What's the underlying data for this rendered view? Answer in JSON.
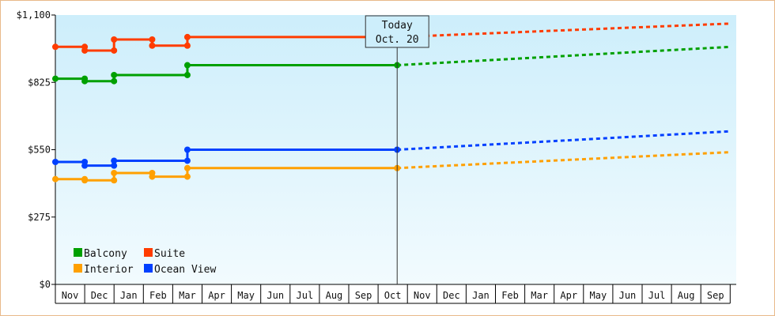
{
  "chart_data": {
    "type": "line",
    "title": "",
    "xlabel": "",
    "ylabel": "",
    "ylim": [
      0,
      1100
    ],
    "yticks": [
      0,
      275,
      550,
      825,
      1100
    ],
    "ytick_labels": [
      "$0",
      "$275",
      "$550",
      "$825",
      "$1,100"
    ],
    "months": [
      "Nov",
      "Dec",
      "Jan",
      "Feb",
      "Mar",
      "Apr",
      "May",
      "Jun",
      "Jul",
      "Aug",
      "Sep",
      "Oct",
      "Nov",
      "Dec",
      "Jan",
      "Feb",
      "Mar",
      "Apr",
      "May",
      "Jun",
      "Jul",
      "Aug",
      "Sep"
    ],
    "x_unit_note": "month index: 0 = start of first Nov, 1 = start of Dec, etc.",
    "today": {
      "line1": "Today",
      "line2": "Oct. 20",
      "x": 11.65
    },
    "grid": false,
    "legend_placement": "bottom-left",
    "series": [
      {
        "name": "Suite",
        "color": "#ff3c00",
        "history": [
          [
            0,
            970
          ],
          [
            1,
            970
          ],
          [
            1,
            955
          ],
          [
            2,
            955
          ],
          [
            2,
            1000
          ],
          [
            3.3,
            1000
          ],
          [
            3.3,
            975
          ],
          [
            4.5,
            975
          ],
          [
            4.5,
            1010
          ],
          [
            11.65,
            1010
          ]
        ],
        "markers": [
          [
            0,
            970
          ],
          [
            1,
            970
          ],
          [
            1,
            955
          ],
          [
            2,
            955
          ],
          [
            2,
            1000
          ],
          [
            3.3,
            1000
          ],
          [
            3.3,
            975
          ],
          [
            4.5,
            975
          ],
          [
            4.5,
            1010
          ],
          [
            11.65,
            1010
          ]
        ],
        "forecast": [
          [
            11.65,
            1010
          ],
          [
            23,
            1065
          ]
        ]
      },
      {
        "name": "Balcony",
        "color": "#00a000",
        "history": [
          [
            0,
            840
          ],
          [
            1,
            840
          ],
          [
            1,
            830
          ],
          [
            2,
            830
          ],
          [
            2,
            855
          ],
          [
            4.5,
            855
          ],
          [
            4.5,
            895
          ],
          [
            11.65,
            895
          ]
        ],
        "markers": [
          [
            0,
            840
          ],
          [
            1,
            840
          ],
          [
            1,
            830
          ],
          [
            2,
            830
          ],
          [
            2,
            855
          ],
          [
            4.5,
            855
          ],
          [
            4.5,
            895
          ],
          [
            11.65,
            895
          ]
        ],
        "forecast": [
          [
            11.65,
            895
          ],
          [
            23,
            970
          ]
        ]
      },
      {
        "name": "Ocean View",
        "color": "#0040ff",
        "history": [
          [
            0,
            500
          ],
          [
            1,
            500
          ],
          [
            1,
            485
          ],
          [
            2,
            485
          ],
          [
            2,
            505
          ],
          [
            4.5,
            505
          ],
          [
            4.5,
            550
          ],
          [
            11.65,
            550
          ]
        ],
        "markers": [
          [
            0,
            500
          ],
          [
            1,
            500
          ],
          [
            1,
            485
          ],
          [
            2,
            485
          ],
          [
            2,
            505
          ],
          [
            4.5,
            505
          ],
          [
            4.5,
            550
          ],
          [
            11.65,
            550
          ]
        ],
        "forecast": [
          [
            11.65,
            550
          ],
          [
            23,
            625
          ]
        ]
      },
      {
        "name": "Interior",
        "color": "#ffa000",
        "history": [
          [
            0,
            430
          ],
          [
            1,
            430
          ],
          [
            1,
            425
          ],
          [
            2,
            425
          ],
          [
            2,
            455
          ],
          [
            3.3,
            455
          ],
          [
            3.3,
            440
          ],
          [
            4.5,
            440
          ],
          [
            4.5,
            475
          ],
          [
            11.65,
            475
          ]
        ],
        "markers": [
          [
            0,
            430
          ],
          [
            1,
            430
          ],
          [
            1,
            425
          ],
          [
            2,
            425
          ],
          [
            2,
            455
          ],
          [
            3.3,
            455
          ],
          [
            3.3,
            440
          ],
          [
            4.5,
            440
          ],
          [
            4.5,
            475
          ],
          [
            11.65,
            475
          ]
        ],
        "forecast": [
          [
            11.65,
            475
          ],
          [
            23,
            540
          ]
        ]
      }
    ],
    "legend": [
      {
        "name": "Balcony",
        "color": "#00a000"
      },
      {
        "name": "Suite",
        "color": "#ff3c00"
      },
      {
        "name": "Interior",
        "color": "#ffa000"
      },
      {
        "name": "Ocean View",
        "color": "#0040ff"
      }
    ],
    "colors": {
      "plot_top": "#cdeefb",
      "plot_bottom": "#f2fbfe",
      "frame": "#e8b98a"
    }
  }
}
